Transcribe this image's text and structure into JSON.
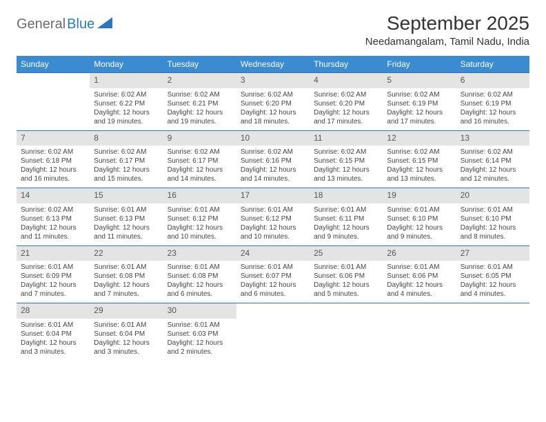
{
  "logo": {
    "word1": "General",
    "word2": "Blue"
  },
  "title": "September 2025",
  "location": "Needamangalam, Tamil Nadu, India",
  "colors": {
    "header_bg": "#3a8bd0",
    "header_text": "#ffffff",
    "daynum_bg": "#e4e4e4",
    "row_border": "#2b78c2",
    "text": "#333333",
    "logo_blue": "#2b78c2",
    "logo_gray": "#6b6b6b"
  },
  "day_headers": [
    "Sunday",
    "Monday",
    "Tuesday",
    "Wednesday",
    "Thursday",
    "Friday",
    "Saturday"
  ],
  "weeks": [
    [
      null,
      {
        "n": "1",
        "sr": "Sunrise: 6:02 AM",
        "ss": "Sunset: 6:22 PM",
        "dl": "Daylight: 12 hours and 19 minutes."
      },
      {
        "n": "2",
        "sr": "Sunrise: 6:02 AM",
        "ss": "Sunset: 6:21 PM",
        "dl": "Daylight: 12 hours and 19 minutes."
      },
      {
        "n": "3",
        "sr": "Sunrise: 6:02 AM",
        "ss": "Sunset: 6:20 PM",
        "dl": "Daylight: 12 hours and 18 minutes."
      },
      {
        "n": "4",
        "sr": "Sunrise: 6:02 AM",
        "ss": "Sunset: 6:20 PM",
        "dl": "Daylight: 12 hours and 17 minutes."
      },
      {
        "n": "5",
        "sr": "Sunrise: 6:02 AM",
        "ss": "Sunset: 6:19 PM",
        "dl": "Daylight: 12 hours and 17 minutes."
      },
      {
        "n": "6",
        "sr": "Sunrise: 6:02 AM",
        "ss": "Sunset: 6:19 PM",
        "dl": "Daylight: 12 hours and 16 minutes."
      }
    ],
    [
      {
        "n": "7",
        "sr": "Sunrise: 6:02 AM",
        "ss": "Sunset: 6:18 PM",
        "dl": "Daylight: 12 hours and 16 minutes."
      },
      {
        "n": "8",
        "sr": "Sunrise: 6:02 AM",
        "ss": "Sunset: 6:17 PM",
        "dl": "Daylight: 12 hours and 15 minutes."
      },
      {
        "n": "9",
        "sr": "Sunrise: 6:02 AM",
        "ss": "Sunset: 6:17 PM",
        "dl": "Daylight: 12 hours and 14 minutes."
      },
      {
        "n": "10",
        "sr": "Sunrise: 6:02 AM",
        "ss": "Sunset: 6:16 PM",
        "dl": "Daylight: 12 hours and 14 minutes."
      },
      {
        "n": "11",
        "sr": "Sunrise: 6:02 AM",
        "ss": "Sunset: 6:15 PM",
        "dl": "Daylight: 12 hours and 13 minutes."
      },
      {
        "n": "12",
        "sr": "Sunrise: 6:02 AM",
        "ss": "Sunset: 6:15 PM",
        "dl": "Daylight: 12 hours and 13 minutes."
      },
      {
        "n": "13",
        "sr": "Sunrise: 6:02 AM",
        "ss": "Sunset: 6:14 PM",
        "dl": "Daylight: 12 hours and 12 minutes."
      }
    ],
    [
      {
        "n": "14",
        "sr": "Sunrise: 6:02 AM",
        "ss": "Sunset: 6:13 PM",
        "dl": "Daylight: 12 hours and 11 minutes."
      },
      {
        "n": "15",
        "sr": "Sunrise: 6:01 AM",
        "ss": "Sunset: 6:13 PM",
        "dl": "Daylight: 12 hours and 11 minutes."
      },
      {
        "n": "16",
        "sr": "Sunrise: 6:01 AM",
        "ss": "Sunset: 6:12 PM",
        "dl": "Daylight: 12 hours and 10 minutes."
      },
      {
        "n": "17",
        "sr": "Sunrise: 6:01 AM",
        "ss": "Sunset: 6:12 PM",
        "dl": "Daylight: 12 hours and 10 minutes."
      },
      {
        "n": "18",
        "sr": "Sunrise: 6:01 AM",
        "ss": "Sunset: 6:11 PM",
        "dl": "Daylight: 12 hours and 9 minutes."
      },
      {
        "n": "19",
        "sr": "Sunrise: 6:01 AM",
        "ss": "Sunset: 6:10 PM",
        "dl": "Daylight: 12 hours and 9 minutes."
      },
      {
        "n": "20",
        "sr": "Sunrise: 6:01 AM",
        "ss": "Sunset: 6:10 PM",
        "dl": "Daylight: 12 hours and 8 minutes."
      }
    ],
    [
      {
        "n": "21",
        "sr": "Sunrise: 6:01 AM",
        "ss": "Sunset: 6:09 PM",
        "dl": "Daylight: 12 hours and 7 minutes."
      },
      {
        "n": "22",
        "sr": "Sunrise: 6:01 AM",
        "ss": "Sunset: 6:08 PM",
        "dl": "Daylight: 12 hours and 7 minutes."
      },
      {
        "n": "23",
        "sr": "Sunrise: 6:01 AM",
        "ss": "Sunset: 6:08 PM",
        "dl": "Daylight: 12 hours and 6 minutes."
      },
      {
        "n": "24",
        "sr": "Sunrise: 6:01 AM",
        "ss": "Sunset: 6:07 PM",
        "dl": "Daylight: 12 hours and 6 minutes."
      },
      {
        "n": "25",
        "sr": "Sunrise: 6:01 AM",
        "ss": "Sunset: 6:06 PM",
        "dl": "Daylight: 12 hours and 5 minutes."
      },
      {
        "n": "26",
        "sr": "Sunrise: 6:01 AM",
        "ss": "Sunset: 6:06 PM",
        "dl": "Daylight: 12 hours and 4 minutes."
      },
      {
        "n": "27",
        "sr": "Sunrise: 6:01 AM",
        "ss": "Sunset: 6:05 PM",
        "dl": "Daylight: 12 hours and 4 minutes."
      }
    ],
    [
      {
        "n": "28",
        "sr": "Sunrise: 6:01 AM",
        "ss": "Sunset: 6:04 PM",
        "dl": "Daylight: 12 hours and 3 minutes."
      },
      {
        "n": "29",
        "sr": "Sunrise: 6:01 AM",
        "ss": "Sunset: 6:04 PM",
        "dl": "Daylight: 12 hours and 3 minutes."
      },
      {
        "n": "30",
        "sr": "Sunrise: 6:01 AM",
        "ss": "Sunset: 6:03 PM",
        "dl": "Daylight: 12 hours and 2 minutes."
      },
      null,
      null,
      null,
      null
    ]
  ]
}
